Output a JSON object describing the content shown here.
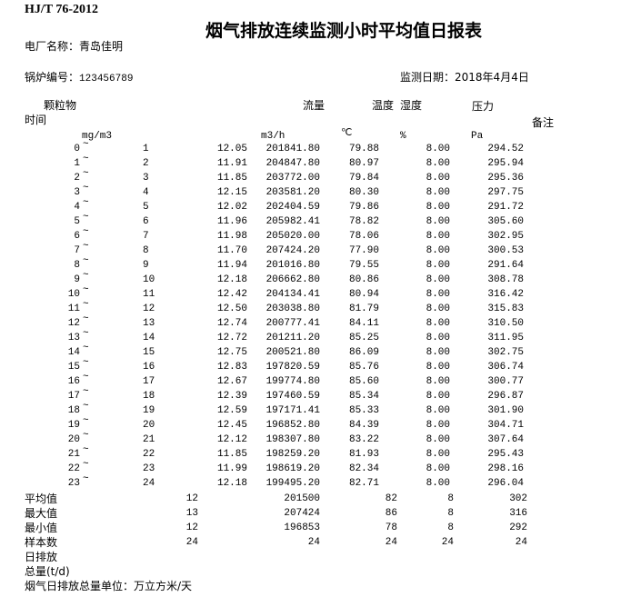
{
  "header": {
    "standard": "HJ/T 76-2012",
    "title": "烟气排放连续监测小时平均值日报表",
    "plant_label": "电厂名称：青岛佳明",
    "boiler_label": "锅炉编号：",
    "boiler_id": "123456789",
    "date_label": "监测日期：",
    "date": "2018年4月4日"
  },
  "columns": {
    "particulate": "颗粒物",
    "time": "时间",
    "flow": "流量",
    "temperature": "温度",
    "humidity": "湿度",
    "pressure": "压力",
    "remarks": "备注",
    "unit_particulate": "mg/m3",
    "unit_flow": "m3/h",
    "unit_temperature": "℃",
    "unit_humidity": "%",
    "unit_pressure": "Pa",
    "range_sep": "~"
  },
  "rows": [
    {
      "start": "0",
      "end": "1",
      "particulate": "12.05",
      "flow": "201841.80",
      "temperature": "79.88",
      "humidity": "8.00",
      "pressure": "294.52"
    },
    {
      "start": "1",
      "end": "2",
      "particulate": "11.91",
      "flow": "204847.80",
      "temperature": "80.97",
      "humidity": "8.00",
      "pressure": "295.94"
    },
    {
      "start": "2",
      "end": "3",
      "particulate": "11.85",
      "flow": "203772.00",
      "temperature": "79.84",
      "humidity": "8.00",
      "pressure": "295.36"
    },
    {
      "start": "3",
      "end": "4",
      "particulate": "12.15",
      "flow": "203581.20",
      "temperature": "80.30",
      "humidity": "8.00",
      "pressure": "297.75"
    },
    {
      "start": "4",
      "end": "5",
      "particulate": "12.02",
      "flow": "202404.59",
      "temperature": "79.86",
      "humidity": "8.00",
      "pressure": "291.72"
    },
    {
      "start": "5",
      "end": "6",
      "particulate": "11.96",
      "flow": "205982.41",
      "temperature": "78.82",
      "humidity": "8.00",
      "pressure": "305.60"
    },
    {
      "start": "6",
      "end": "7",
      "particulate": "11.98",
      "flow": "205020.00",
      "temperature": "78.06",
      "humidity": "8.00",
      "pressure": "302.95"
    },
    {
      "start": "7",
      "end": "8",
      "particulate": "11.70",
      "flow": "207424.20",
      "temperature": "77.90",
      "humidity": "8.00",
      "pressure": "300.53"
    },
    {
      "start": "8",
      "end": "9",
      "particulate": "11.94",
      "flow": "201016.80",
      "temperature": "79.55",
      "humidity": "8.00",
      "pressure": "291.64"
    },
    {
      "start": "9",
      "end": "10",
      "particulate": "12.18",
      "flow": "206662.80",
      "temperature": "80.86",
      "humidity": "8.00",
      "pressure": "308.78"
    },
    {
      "start": "10",
      "end": "11",
      "particulate": "12.42",
      "flow": "204134.41",
      "temperature": "80.94",
      "humidity": "8.00",
      "pressure": "316.42"
    },
    {
      "start": "11",
      "end": "12",
      "particulate": "12.50",
      "flow": "203038.80",
      "temperature": "81.79",
      "humidity": "8.00",
      "pressure": "315.83"
    },
    {
      "start": "12",
      "end": "13",
      "particulate": "12.74",
      "flow": "200777.41",
      "temperature": "84.11",
      "humidity": "8.00",
      "pressure": "310.50"
    },
    {
      "start": "13",
      "end": "14",
      "particulate": "12.72",
      "flow": "201211.20",
      "temperature": "85.25",
      "humidity": "8.00",
      "pressure": "311.95"
    },
    {
      "start": "14",
      "end": "15",
      "particulate": "12.75",
      "flow": "200521.80",
      "temperature": "86.09",
      "humidity": "8.00",
      "pressure": "302.75"
    },
    {
      "start": "15",
      "end": "16",
      "particulate": "12.83",
      "flow": "197820.59",
      "temperature": "85.76",
      "humidity": "8.00",
      "pressure": "306.74"
    },
    {
      "start": "16",
      "end": "17",
      "particulate": "12.67",
      "flow": "199774.80",
      "temperature": "85.60",
      "humidity": "8.00",
      "pressure": "300.77"
    },
    {
      "start": "17",
      "end": "18",
      "particulate": "12.39",
      "flow": "197460.59",
      "temperature": "85.34",
      "humidity": "8.00",
      "pressure": "296.87"
    },
    {
      "start": "18",
      "end": "19",
      "particulate": "12.59",
      "flow": "197171.41",
      "temperature": "85.33",
      "humidity": "8.00",
      "pressure": "301.90"
    },
    {
      "start": "19",
      "end": "20",
      "particulate": "12.45",
      "flow": "196852.80",
      "temperature": "84.39",
      "humidity": "8.00",
      "pressure": "304.71"
    },
    {
      "start": "20",
      "end": "21",
      "particulate": "12.12",
      "flow": "198307.80",
      "temperature": "83.22",
      "humidity": "8.00",
      "pressure": "307.64"
    },
    {
      "start": "21",
      "end": "22",
      "particulate": "11.85",
      "flow": "198259.20",
      "temperature": "81.93",
      "humidity": "8.00",
      "pressure": "295.43"
    },
    {
      "start": "22",
      "end": "23",
      "particulate": "11.99",
      "flow": "198619.20",
      "temperature": "82.34",
      "humidity": "8.00",
      "pressure": "298.16"
    },
    {
      "start": "23",
      "end": "24",
      "particulate": "12.18",
      "flow": "199495.20",
      "temperature": "82.71",
      "humidity": "8.00",
      "pressure": "296.04"
    }
  ],
  "summary": [
    {
      "label": "平均值",
      "particulate": "12",
      "flow": "201500",
      "temperature": "82",
      "humidity": "8",
      "pressure": "302"
    },
    {
      "label": "最大值",
      "particulate": "13",
      "flow": "207424",
      "temperature": "86",
      "humidity": "8",
      "pressure": "316"
    },
    {
      "label": "最小值",
      "particulate": "12",
      "flow": "196853",
      "temperature": "78",
      "humidity": "8",
      "pressure": "292"
    },
    {
      "label": "样本数",
      "particulate": "24",
      "flow": "24",
      "temperature": "24",
      "humidity": "24",
      "pressure": "24"
    },
    {
      "label": "日排放",
      "particulate": "",
      "flow": "",
      "temperature": "",
      "humidity": "",
      "pressure": ""
    },
    {
      "label": "总量(t/d)",
      "particulate": "",
      "flow": "",
      "temperature": "",
      "humidity": "",
      "pressure": ""
    }
  ],
  "footer": {
    "note": "烟气日排放总量单位：万立方米/天"
  }
}
